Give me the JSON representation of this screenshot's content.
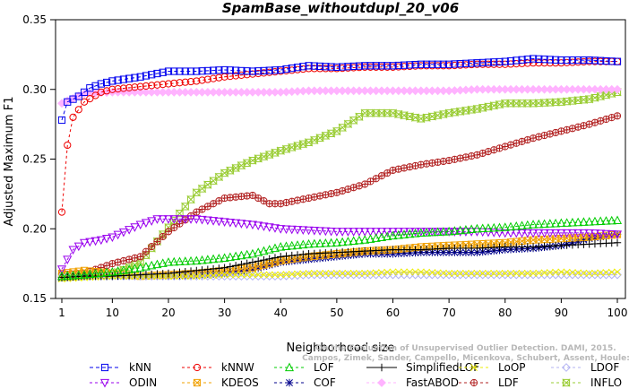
{
  "chart_data": {
    "type": "line",
    "title": "SpamBase_withoutdupl_20_v06",
    "xlabel": "Neighborhood size",
    "ylabel": "Adjusted Maximum F1",
    "xlim": [
      1,
      100
    ],
    "ylim": [
      0.15,
      0.35
    ],
    "xticks": [
      1,
      10,
      20,
      30,
      40,
      50,
      60,
      70,
      80,
      90,
      100
    ],
    "yticks": [
      0.15,
      0.2,
      0.25,
      0.3,
      0.35
    ],
    "watermark": [
      "Campos, Zimek, Sander, Campello, Micenkova, Schubert, Assent, Houle:",
      "On the Evaluation of Unsupervised Outlier Detection. DAMI, 2015."
    ],
    "legend_position": "bottom",
    "series": [
      {
        "name": "kNN",
        "color": "#0000ee",
        "marker": "square",
        "dash": "4,3",
        "values": [
          [
            1,
            0.278
          ],
          [
            2,
            0.291
          ],
          [
            4,
            0.295
          ],
          [
            6,
            0.301
          ],
          [
            8,
            0.304
          ],
          [
            10,
            0.306
          ],
          [
            15,
            0.309
          ],
          [
            20,
            0.313
          ],
          [
            25,
            0.313
          ],
          [
            30,
            0.314
          ],
          [
            35,
            0.313
          ],
          [
            40,
            0.314
          ],
          [
            45,
            0.317
          ],
          [
            50,
            0.316
          ],
          [
            55,
            0.317
          ],
          [
            60,
            0.317
          ],
          [
            65,
            0.318
          ],
          [
            70,
            0.318
          ],
          [
            75,
            0.319
          ],
          [
            80,
            0.32
          ],
          [
            85,
            0.322
          ],
          [
            90,
            0.321
          ],
          [
            95,
            0.321
          ],
          [
            100,
            0.32
          ]
        ]
      },
      {
        "name": "kNNW",
        "color": "#ee0000",
        "marker": "circle",
        "dash": "3,3",
        "values": [
          [
            1,
            0.212
          ],
          [
            2,
            0.26
          ],
          [
            3,
            0.28
          ],
          [
            5,
            0.291
          ],
          [
            8,
            0.298
          ],
          [
            10,
            0.3
          ],
          [
            15,
            0.302
          ],
          [
            20,
            0.304
          ],
          [
            25,
            0.306
          ],
          [
            30,
            0.309
          ],
          [
            35,
            0.311
          ],
          [
            40,
            0.313
          ],
          [
            45,
            0.315
          ],
          [
            50,
            0.315
          ],
          [
            55,
            0.316
          ],
          [
            60,
            0.316
          ],
          [
            65,
            0.317
          ],
          [
            70,
            0.317
          ],
          [
            75,
            0.318
          ],
          [
            80,
            0.318
          ],
          [
            85,
            0.319
          ],
          [
            90,
            0.319
          ],
          [
            95,
            0.32
          ],
          [
            100,
            0.32
          ]
        ]
      },
      {
        "name": "LOF",
        "color": "#00cc00",
        "marker": "triangle",
        "dash": "3,3",
        "values": [
          [
            1,
            0.166
          ],
          [
            5,
            0.167
          ],
          [
            10,
            0.169
          ],
          [
            15,
            0.172
          ],
          [
            20,
            0.176
          ],
          [
            25,
            0.177
          ],
          [
            30,
            0.179
          ],
          [
            35,
            0.182
          ],
          [
            40,
            0.187
          ],
          [
            45,
            0.189
          ],
          [
            50,
            0.19
          ],
          [
            55,
            0.192
          ],
          [
            60,
            0.195
          ],
          [
            65,
            0.197
          ],
          [
            70,
            0.198
          ],
          [
            75,
            0.2
          ],
          [
            80,
            0.201
          ],
          [
            85,
            0.203
          ],
          [
            90,
            0.204
          ],
          [
            95,
            0.205
          ],
          [
            100,
            0.206
          ]
        ]
      },
      {
        "name": "SimplifiedLOF",
        "color": "#000000",
        "marker": "plus",
        "dash": "",
        "values": [
          [
            1,
            0.165
          ],
          [
            5,
            0.166
          ],
          [
            10,
            0.166
          ],
          [
            15,
            0.167
          ],
          [
            20,
            0.168
          ],
          [
            25,
            0.17
          ],
          [
            30,
            0.172
          ],
          [
            35,
            0.176
          ],
          [
            40,
            0.18
          ],
          [
            45,
            0.182
          ],
          [
            50,
            0.183
          ],
          [
            55,
            0.184
          ],
          [
            60,
            0.185
          ],
          [
            65,
            0.185
          ],
          [
            70,
            0.186
          ],
          [
            75,
            0.186
          ],
          [
            80,
            0.187
          ],
          [
            85,
            0.187
          ],
          [
            90,
            0.188
          ],
          [
            95,
            0.189
          ],
          [
            100,
            0.19
          ]
        ]
      },
      {
        "name": "LoOP",
        "color": "#eeee00",
        "marker": "x",
        "dash": "3,3",
        "values": [
          [
            1,
            0.164
          ],
          [
            5,
            0.165
          ],
          [
            10,
            0.166
          ],
          [
            15,
            0.166
          ],
          [
            20,
            0.166
          ],
          [
            25,
            0.166
          ],
          [
            30,
            0.167
          ],
          [
            35,
            0.167
          ],
          [
            40,
            0.167
          ],
          [
            45,
            0.168
          ],
          [
            50,
            0.168
          ],
          [
            55,
            0.168
          ],
          [
            60,
            0.169
          ],
          [
            65,
            0.169
          ],
          [
            70,
            0.168
          ],
          [
            75,
            0.168
          ],
          [
            80,
            0.168
          ],
          [
            85,
            0.168
          ],
          [
            90,
            0.169
          ],
          [
            95,
            0.168
          ],
          [
            100,
            0.169
          ]
        ]
      },
      {
        "name": "LDOF",
        "color": "#b3b3f2",
        "marker": "diamond",
        "dash": "3,3",
        "values": [
          [
            1,
            0.166
          ],
          [
            5,
            0.166
          ],
          [
            10,
            0.166
          ],
          [
            15,
            0.166
          ],
          [
            20,
            0.166
          ],
          [
            25,
            0.166
          ],
          [
            30,
            0.166
          ],
          [
            35,
            0.166
          ],
          [
            40,
            0.166
          ],
          [
            45,
            0.167
          ],
          [
            50,
            0.167
          ],
          [
            55,
            0.167
          ],
          [
            60,
            0.167
          ],
          [
            65,
            0.167
          ],
          [
            70,
            0.167
          ],
          [
            75,
            0.167
          ],
          [
            80,
            0.167
          ],
          [
            85,
            0.167
          ],
          [
            90,
            0.167
          ],
          [
            95,
            0.167
          ],
          [
            100,
            0.167
          ]
        ]
      },
      {
        "name": "ODIN",
        "color": "#9900ee",
        "marker": "triangle-down",
        "dash": "3,3",
        "values": [
          [
            1,
            0.171
          ],
          [
            3,
            0.185
          ],
          [
            5,
            0.19
          ],
          [
            8,
            0.192
          ],
          [
            10,
            0.194
          ],
          [
            15,
            0.203
          ],
          [
            18,
            0.207
          ],
          [
            20,
            0.207
          ],
          [
            25,
            0.207
          ],
          [
            30,
            0.205
          ],
          [
            35,
            0.203
          ],
          [
            40,
            0.2
          ],
          [
            45,
            0.199
          ],
          [
            50,
            0.198
          ],
          [
            55,
            0.198
          ],
          [
            60,
            0.198
          ],
          [
            65,
            0.198
          ],
          [
            70,
            0.198
          ],
          [
            75,
            0.198
          ],
          [
            80,
            0.197
          ],
          [
            85,
            0.197
          ],
          [
            90,
            0.197
          ],
          [
            95,
            0.197
          ],
          [
            100,
            0.196
          ]
        ]
      },
      {
        "name": "KDEOS",
        "color": "#f0a000",
        "marker": "square-x",
        "dash": "3,3",
        "values": [
          [
            1,
            0.168
          ],
          [
            5,
            0.17
          ],
          [
            10,
            0.168
          ],
          [
            15,
            0.166
          ],
          [
            20,
            0.167
          ],
          [
            25,
            0.168
          ],
          [
            30,
            0.17
          ],
          [
            35,
            0.172
          ],
          [
            40,
            0.177
          ],
          [
            45,
            0.18
          ],
          [
            50,
            0.182
          ],
          [
            55,
            0.184
          ],
          [
            60,
            0.185
          ],
          [
            65,
            0.187
          ],
          [
            70,
            0.188
          ],
          [
            75,
            0.189
          ],
          [
            80,
            0.19
          ],
          [
            85,
            0.192
          ],
          [
            90,
            0.193
          ],
          [
            95,
            0.194
          ],
          [
            100,
            0.196
          ]
        ]
      },
      {
        "name": "COF",
        "color": "#00008b",
        "marker": "star",
        "dash": "3,3",
        "values": [
          [
            1,
            0.165
          ],
          [
            5,
            0.166
          ],
          [
            10,
            0.166
          ],
          [
            15,
            0.166
          ],
          [
            20,
            0.166
          ],
          [
            25,
            0.167
          ],
          [
            30,
            0.168
          ],
          [
            35,
            0.171
          ],
          [
            40,
            0.176
          ],
          [
            45,
            0.178
          ],
          [
            50,
            0.18
          ],
          [
            55,
            0.182
          ],
          [
            60,
            0.182
          ],
          [
            65,
            0.183
          ],
          [
            70,
            0.183
          ],
          [
            75,
            0.183
          ],
          [
            80,
            0.185
          ],
          [
            85,
            0.186
          ],
          [
            90,
            0.188
          ],
          [
            95,
            0.193
          ],
          [
            100,
            0.196
          ]
        ]
      },
      {
        "name": "FastABOD",
        "color": "#ffb3ff",
        "marker": "diamond-filled",
        "dash": "3,3",
        "values": [
          [
            1,
            0.29
          ],
          [
            5,
            0.297
          ],
          [
            10,
            0.298
          ],
          [
            15,
            0.298
          ],
          [
            20,
            0.298
          ],
          [
            25,
            0.298
          ],
          [
            30,
            0.298
          ],
          [
            35,
            0.298
          ],
          [
            40,
            0.298
          ],
          [
            45,
            0.299
          ],
          [
            50,
            0.299
          ],
          [
            55,
            0.299
          ],
          [
            60,
            0.299
          ],
          [
            65,
            0.299
          ],
          [
            70,
            0.299
          ],
          [
            75,
            0.3
          ],
          [
            80,
            0.3
          ],
          [
            85,
            0.3
          ],
          [
            90,
            0.3
          ],
          [
            95,
            0.3
          ],
          [
            100,
            0.3
          ]
        ]
      },
      {
        "name": "LDF",
        "color": "#b22222",
        "marker": "circle-plus",
        "dash": "3,3",
        "values": [
          [
            1,
            0.167
          ],
          [
            5,
            0.168
          ],
          [
            10,
            0.175
          ],
          [
            15,
            0.18
          ],
          [
            20,
            0.198
          ],
          [
            25,
            0.212
          ],
          [
            30,
            0.222
          ],
          [
            35,
            0.224
          ],
          [
            38,
            0.218
          ],
          [
            40,
            0.218
          ],
          [
            45,
            0.222
          ],
          [
            50,
            0.226
          ],
          [
            55,
            0.232
          ],
          [
            60,
            0.242
          ],
          [
            65,
            0.246
          ],
          [
            70,
            0.249
          ],
          [
            75,
            0.253
          ],
          [
            80,
            0.259
          ],
          [
            85,
            0.265
          ],
          [
            90,
            0.27
          ],
          [
            95,
            0.275
          ],
          [
            100,
            0.281
          ]
        ]
      },
      {
        "name": "INFLO",
        "color": "#99cc33",
        "marker": "hourglass",
        "dash": "3,3",
        "values": [
          [
            1,
            0.165
          ],
          [
            5,
            0.166
          ],
          [
            10,
            0.167
          ],
          [
            15,
            0.176
          ],
          [
            20,
            0.201
          ],
          [
            25,
            0.226
          ],
          [
            30,
            0.24
          ],
          [
            35,
            0.249
          ],
          [
            40,
            0.256
          ],
          [
            45,
            0.262
          ],
          [
            50,
            0.27
          ],
          [
            55,
            0.283
          ],
          [
            60,
            0.283
          ],
          [
            65,
            0.279
          ],
          [
            70,
            0.283
          ],
          [
            75,
            0.286
          ],
          [
            80,
            0.29
          ],
          [
            85,
            0.29
          ],
          [
            90,
            0.291
          ],
          [
            95,
            0.293
          ],
          [
            100,
            0.298
          ]
        ]
      }
    ]
  }
}
